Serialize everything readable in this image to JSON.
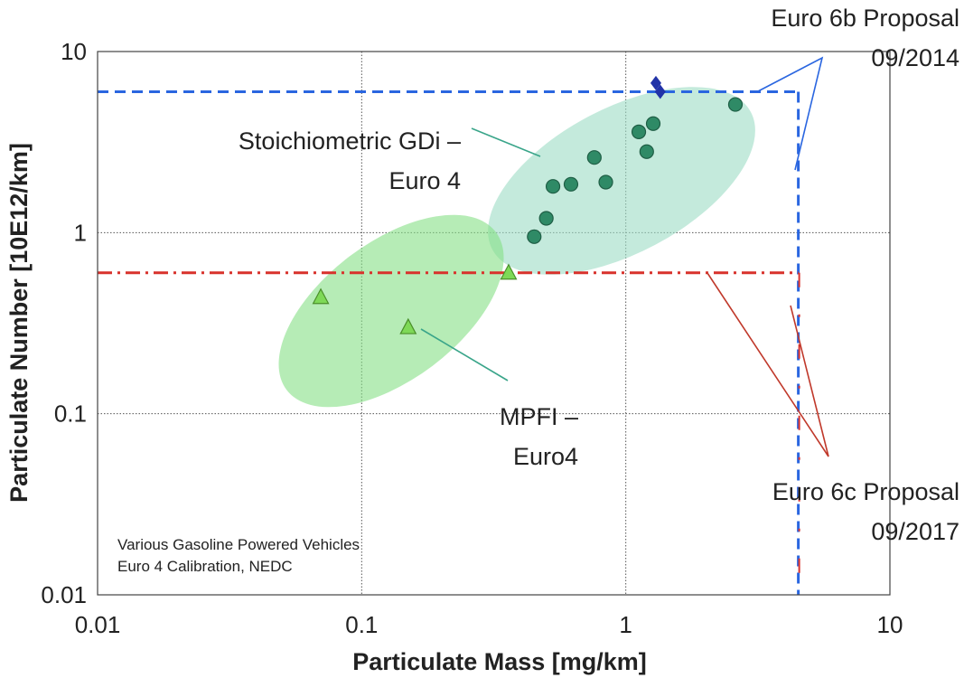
{
  "chart_data": {
    "type": "scatter",
    "xscale": "log",
    "yscale": "log",
    "xlim": [
      0.01,
      10
    ],
    "ylim": [
      0.01,
      10
    ],
    "xlabel": "Particulate Mass [mg/km]",
    "ylabel": "Particulate Number [10E12/km]",
    "xticks": [
      "0.01",
      "0.1",
      "1",
      "10"
    ],
    "yticks": [
      "0.01",
      "0.1",
      "1",
      "10"
    ],
    "grid": true,
    "note": [
      "Various Gasoline Powered Vehicles",
      "Euro 4 Calibration, NEDC"
    ],
    "series": [
      {
        "marker": "circle",
        "color": "#2f8a66",
        "points": [
          {
            "x": 0.45,
            "y": 0.95
          },
          {
            "x": 0.5,
            "y": 1.2
          },
          {
            "x": 0.53,
            "y": 1.8
          },
          {
            "x": 0.62,
            "y": 1.85
          },
          {
            "x": 0.76,
            "y": 2.6
          },
          {
            "x": 0.84,
            "y": 1.9
          },
          {
            "x": 1.12,
            "y": 3.6
          },
          {
            "x": 1.2,
            "y": 2.8
          },
          {
            "x": 1.27,
            "y": 4.0
          },
          {
            "x": 2.6,
            "y": 5.1
          }
        ]
      },
      {
        "marker": "triangle",
        "color": "#7ed957",
        "points": [
          {
            "x": 0.07,
            "y": 0.44
          },
          {
            "x": 0.15,
            "y": 0.3
          },
          {
            "x": 0.36,
            "y": 0.6
          }
        ]
      },
      {
        "marker": "diamond",
        "color": "#2233a8",
        "points": [
          {
            "x": 1.3,
            "y": 6.7
          },
          {
            "x": 1.35,
            "y": 6.0
          }
        ]
      }
    ],
    "regions": [
      {
        "label": [
          "Stoichiometric GDi –",
          "Euro 4"
        ],
        "color": "#9ddcc4"
      },
      {
        "label": [
          "MPFI –",
          "Euro4"
        ],
        "color": "#86df86"
      }
    ],
    "limits": [
      {
        "label": [
          "Euro 6b Proposal",
          "09/2014"
        ],
        "pm": 4.5,
        "pn": 6.0,
        "color": "#2a66e0"
      },
      {
        "label": [
          "Euro 6c Proposal",
          "09/2017"
        ],
        "pm": 4.5,
        "pn": 0.6,
        "color": "#d8322c"
      }
    ]
  }
}
